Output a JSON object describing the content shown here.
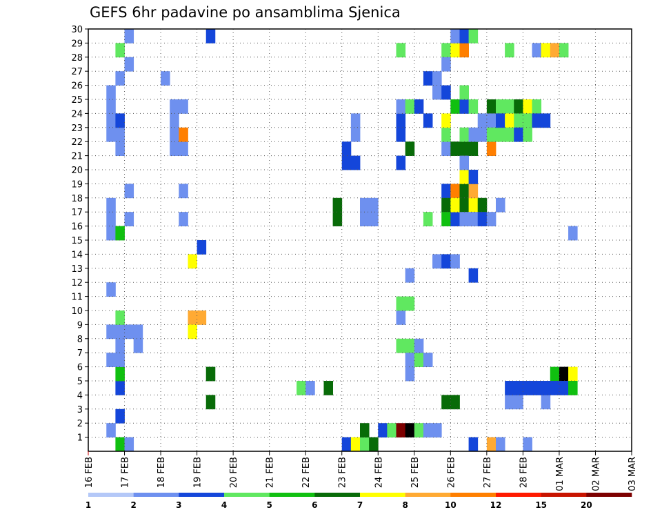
{
  "chart_data": {
    "type": "heatmap",
    "title": "GEFS 6hr padavine po ansamblima Sjenica",
    "ylabel": "",
    "xlabel": "",
    "y_ticks": [
      "1",
      "2",
      "3",
      "4",
      "5",
      "6",
      "7",
      "8",
      "9",
      "10",
      "11",
      "12",
      "13",
      "14",
      "15",
      "16",
      "17",
      "18",
      "19",
      "20",
      "21",
      "22",
      "23",
      "24",
      "25",
      "26",
      "27",
      "28",
      "29",
      "30"
    ],
    "x_ticks": [
      "16 FEB",
      "17 FEB",
      "18 FEB",
      "19 FEB",
      "20 FEB",
      "21 FEB",
      "22 FEB",
      "23 FEB",
      "24 FEB",
      "25 FEB",
      "26 FEB",
      "27 FEB",
      "28 FEB",
      "01 MAR",
      "02 MAR",
      "03 MAR"
    ],
    "time_steps_per_day": 4,
    "x_range_days": [
      0,
      15
    ],
    "y_range": [
      0,
      30
    ],
    "grid": "dotted",
    "colorbar": {
      "labels": [
        "1",
        "2",
        "3",
        "4",
        "5",
        "6",
        "7",
        "8",
        "10",
        "12",
        "15",
        "20"
      ],
      "colors": [
        "#b4c8f8",
        "#6e90ef",
        "#1446da",
        "#60e860",
        "#10c010",
        "#086b08",
        "#ffff00",
        "#ffaa33",
        "#ff7f00",
        "#ff1a00",
        "#c81400",
        "#7d0000"
      ]
    },
    "cells": [
      [
        2,
        1,
        1
      ],
      [
        2,
        8,
        1
      ],
      [
        2,
        11,
        1
      ],
      [
        2,
        15,
        1
      ],
      [
        2,
        16,
        1
      ],
      [
        2,
        17,
        1
      ],
      [
        2,
        22,
        1
      ],
      [
        2,
        23,
        1
      ],
      [
        2,
        24,
        1
      ],
      [
        2,
        25,
        1
      ],
      [
        2,
        6,
        1
      ],
      [
        3,
        0,
        4
      ],
      [
        3,
        2,
        2
      ],
      [
        3,
        4,
        2
      ],
      [
        3,
        5,
        4
      ],
      [
        3,
        6,
        1
      ],
      [
        3,
        7,
        1
      ],
      [
        3,
        8,
        1
      ],
      [
        3,
        9,
        3
      ],
      [
        3,
        15,
        4
      ],
      [
        3,
        21,
        1
      ],
      [
        3,
        22,
        1
      ],
      [
        3,
        23,
        2
      ],
      [
        3,
        26,
        1
      ],
      [
        3,
        28,
        3
      ],
      [
        4,
        8,
        1
      ],
      [
        4,
        0,
        1
      ],
      [
        4,
        16,
        1
      ],
      [
        4,
        18,
        1
      ],
      [
        4,
        27,
        1
      ],
      [
        4,
        29,
        1
      ],
      [
        5,
        7,
        1
      ],
      [
        5,
        8,
        1
      ],
      [
        8,
        26,
        1
      ],
      [
        9,
        21,
        1
      ],
      [
        9,
        22,
        1
      ],
      [
        9,
        23,
        1
      ],
      [
        9,
        24,
        1
      ],
      [
        10,
        21,
        1
      ],
      [
        10,
        22,
        8
      ],
      [
        10,
        24,
        1
      ],
      [
        10,
        18,
        1
      ],
      [
        10,
        16,
        1
      ],
      [
        11,
        13,
        6
      ],
      [
        11,
        9,
        7
      ],
      [
        11,
        8,
        6
      ],
      [
        12,
        14,
        2
      ],
      [
        12,
        9,
        7
      ],
      [
        13,
        29,
        2
      ],
      [
        13,
        5,
        5
      ],
      [
        13,
        3,
        5
      ],
      [
        23,
        4,
        3
      ],
      [
        24,
        4,
        1
      ],
      [
        26,
        4,
        5
      ],
      [
        27,
        17,
        5
      ],
      [
        27,
        16,
        5
      ],
      [
        28,
        0,
        2
      ],
      [
        28,
        20,
        2
      ],
      [
        28,
        21,
        2
      ],
      [
        29,
        0,
        6
      ],
      [
        29,
        20,
        2
      ],
      [
        29,
        22,
        1
      ],
      [
        29,
        23,
        1
      ],
      [
        30,
        0,
        3
      ],
      [
        30,
        1,
        5
      ],
      [
        30,
        17,
        1
      ],
      [
        30,
        16,
        1
      ],
      [
        31,
        0,
        5
      ],
      [
        31,
        17,
        1
      ],
      [
        31,
        16,
        1
      ],
      [
        32,
        1,
        2
      ],
      [
        33,
        1,
        3
      ],
      [
        34,
        1,
        11
      ],
      [
        34,
        20,
        2
      ],
      [
        34,
        22,
        2
      ],
      [
        34,
        23,
        2
      ],
      [
        34,
        24,
        1
      ],
      [
        34,
        28,
        3
      ],
      [
        34,
        7,
        3
      ],
      [
        34,
        9,
        1
      ],
      [
        34,
        10,
        3
      ],
      [
        35,
        1,
        12
      ],
      [
        35,
        21,
        5
      ],
      [
        35,
        24,
        3
      ],
      [
        35,
        7,
        3
      ],
      [
        35,
        10,
        3
      ],
      [
        35,
        12,
        1
      ],
      [
        35,
        6,
        1
      ],
      [
        35,
        5,
        1
      ],
      [
        36,
        1,
        3
      ],
      [
        36,
        24,
        2
      ],
      [
        36,
        6,
        3
      ],
      [
        36,
        7,
        1
      ],
      [
        37,
        1,
        1
      ],
      [
        37,
        16,
        3
      ],
      [
        37,
        23,
        2
      ],
      [
        37,
        26,
        2
      ],
      [
        37,
        6,
        1
      ],
      [
        38,
        1,
        1
      ],
      [
        38,
        25,
        1
      ],
      [
        38,
        26,
        1
      ],
      [
        38,
        13,
        1
      ],
      [
        39,
        18,
        2
      ],
      [
        39,
        17,
        5
      ],
      [
        39,
        16,
        4
      ],
      [
        39,
        21,
        1
      ],
      [
        39,
        3,
        5
      ],
      [
        39,
        13,
        2
      ],
      [
        39,
        25,
        2
      ],
      [
        39,
        28,
        3
      ],
      [
        39,
        27,
        1
      ],
      [
        39,
        22,
        3
      ],
      [
        39,
        23,
        6
      ],
      [
        40,
        24,
        4
      ],
      [
        40,
        18,
        8
      ],
      [
        40,
        28,
        6
      ],
      [
        40,
        29,
        1
      ],
      [
        40,
        13,
        1
      ],
      [
        40,
        3,
        5
      ],
      [
        40,
        16,
        2
      ],
      [
        40,
        21,
        5
      ],
      [
        40,
        17,
        6
      ],
      [
        41,
        17,
        5
      ],
      [
        41,
        18,
        5
      ],
      [
        41,
        16,
        1
      ],
      [
        41,
        21,
        5
      ],
      [
        41,
        24,
        2
      ],
      [
        41,
        25,
        3
      ],
      [
        41,
        28,
        8
      ],
      [
        41,
        29,
        2
      ],
      [
        41,
        22,
        3
      ],
      [
        41,
        19,
        6
      ],
      [
        41,
        20,
        1
      ],
      [
        42,
        17,
        6
      ],
      [
        42,
        18,
        7
      ],
      [
        42,
        16,
        1
      ],
      [
        42,
        24,
        3
      ],
      [
        42,
        21,
        5
      ],
      [
        42,
        29,
        3
      ],
      [
        42,
        19,
        2
      ],
      [
        42,
        22,
        1
      ],
      [
        42,
        0,
        2
      ],
      [
        42,
        12,
        2
      ],
      [
        43,
        17,
        5
      ],
      [
        43,
        16,
        2
      ],
      [
        43,
        23,
        1
      ],
      [
        43,
        22,
        1
      ],
      [
        44,
        0,
        7
      ],
      [
        44,
        24,
        5
      ],
      [
        44,
        23,
        1
      ],
      [
        44,
        21,
        8
      ],
      [
        44,
        16,
        1
      ],
      [
        44,
        22,
        3
      ],
      [
        45,
        22,
        3
      ],
      [
        45,
        24,
        3
      ],
      [
        45,
        23,
        2
      ],
      [
        45,
        17,
        1
      ],
      [
        45,
        0,
        1
      ],
      [
        46,
        24,
        3
      ],
      [
        46,
        23,
        6
      ],
      [
        46,
        22,
        3
      ],
      [
        46,
        28,
        3
      ],
      [
        46,
        3,
        1
      ],
      [
        46,
        4,
        2
      ],
      [
        47,
        24,
        5
      ],
      [
        47,
        23,
        3
      ],
      [
        47,
        22,
        2
      ],
      [
        47,
        3,
        1
      ],
      [
        47,
        4,
        2
      ],
      [
        48,
        22,
        3
      ],
      [
        48,
        24,
        6
      ],
      [
        48,
        23,
        3
      ],
      [
        48,
        4,
        2
      ],
      [
        48,
        0,
        1
      ],
      [
        49,
        24,
        3
      ],
      [
        49,
        23,
        2
      ],
      [
        49,
        28,
        1
      ],
      [
        49,
        4,
        2
      ],
      [
        50,
        23,
        2
      ],
      [
        50,
        28,
        6
      ],
      [
        50,
        3,
        1
      ],
      [
        50,
        4,
        2
      ],
      [
        51,
        28,
        7
      ],
      [
        51,
        5,
        4
      ],
      [
        51,
        4,
        2
      ],
      [
        52,
        28,
        3
      ],
      [
        52,
        5,
        12
      ],
      [
        52,
        4,
        2
      ],
      [
        53,
        5,
        6
      ],
      [
        53,
        4,
        4
      ],
      [
        53,
        15,
        1
      ]
    ]
  }
}
